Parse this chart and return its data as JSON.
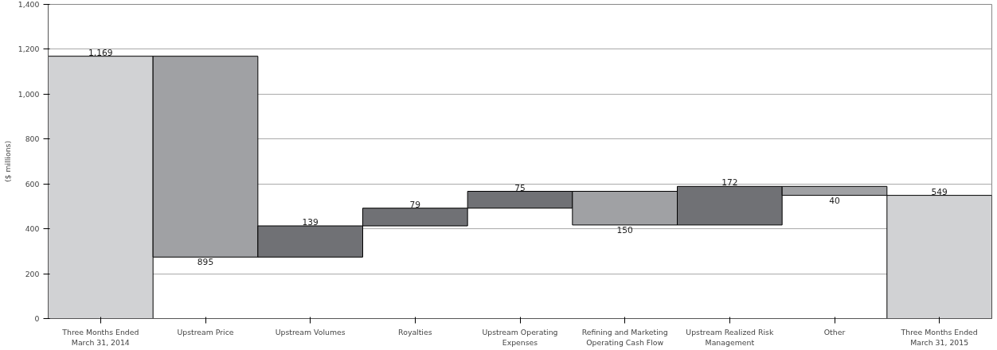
{
  "chart_data": {
    "type": "bar",
    "ylabel": "($ millions)",
    "categories": [
      "Three Months Ended March 31, 2014",
      "Upstream Price",
      "Upstream Volumes",
      "Royalties",
      "Upstream Operating Expenses",
      "Refining and Marketing Operating Cash Flow",
      "Upstream Realized Risk Management",
      "Other",
      "Three Months Ended March 31, 2015"
    ],
    "base": [
      0,
      1169,
      274,
      413,
      492,
      567,
      417,
      589,
      0
    ],
    "values": [
      1169,
      -895,
      139,
      79,
      75,
      -150,
      172,
      -40,
      549
    ],
    "value_labels": [
      "1,169",
      "895",
      "139",
      "79",
      "75",
      "150",
      "172",
      "40",
      "549"
    ],
    "colors": [
      "#d1d2d4",
      "#a0a1a4",
      "#707175",
      "#707175",
      "#707175",
      "#a0a1a4",
      "#707175",
      "#a0a1a4",
      "#d1d2d4"
    ],
    "ylim": [
      0,
      1400
    ],
    "yticks": [
      0,
      {
        "value": 200,
        "label": "200"
      },
      {
        "value": 400,
        "label": "400"
      },
      {
        "value": 600,
        "label": "600"
      },
      {
        "value": 800,
        "label": "800"
      },
      {
        "value": 1000,
        "label": "1,000"
      },
      {
        "value": 1200,
        "label": "1,200"
      },
      {
        "value": 1400,
        "label": "1,400"
      }
    ],
    "grid": "y"
  }
}
